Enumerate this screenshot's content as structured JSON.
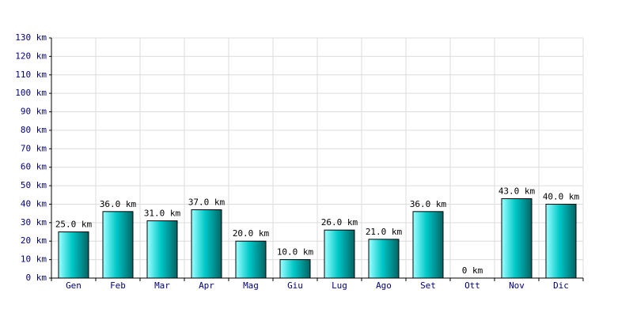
{
  "chart_data": {
    "type": "bar",
    "categories": [
      "Gen",
      "Feb",
      "Mar",
      "Apr",
      "Mag",
      "Giu",
      "Lug",
      "Ago",
      "Set",
      "Ott",
      "Nov",
      "Dic"
    ],
    "values": [
      25,
      36,
      31,
      37,
      20,
      10,
      26,
      21,
      36,
      0,
      43,
      40
    ],
    "value_labels": [
      "25.0 km",
      "36.0 km",
      "31.0 km",
      "37.0 km",
      "20.0 km",
      "10.0 km",
      "26.0 km",
      "21.0 km",
      "36.0 km",
      "0 km",
      "43.0 km",
      "40.0 km"
    ],
    "color": "#00c8c8",
    "ylim": [
      0,
      130
    ],
    "yticks": [
      {
        "value": 0,
        "label": "0 km"
      },
      {
        "value": 10,
        "label": "10 km"
      },
      {
        "value": 20,
        "label": "20 km"
      },
      {
        "value": 30,
        "label": "30 km"
      },
      {
        "value": 40,
        "label": "40 km"
      },
      {
        "value": 50,
        "label": "50 km"
      },
      {
        "value": 60,
        "label": "60 km"
      },
      {
        "value": 70,
        "label": "70 km"
      },
      {
        "value": 80,
        "label": "80 km"
      },
      {
        "value": 90,
        "label": "90 km"
      },
      {
        "value": 100,
        "label": "100 km"
      },
      {
        "value": 110,
        "label": "110 km"
      },
      {
        "value": 120,
        "label": "120 km"
      },
      {
        "value": 130,
        "label": "130 km"
      }
    ],
    "grid": true
  }
}
